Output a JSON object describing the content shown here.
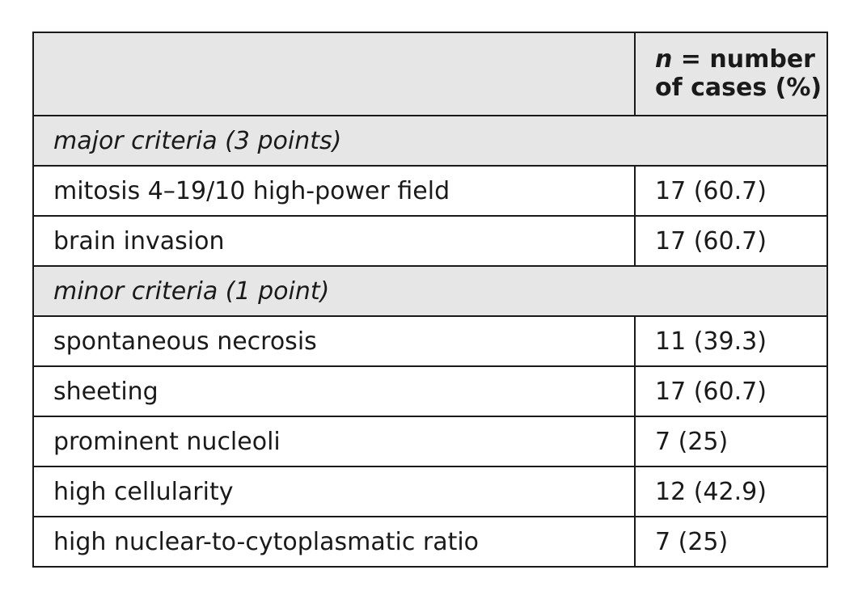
{
  "table": {
    "header": {
      "first_col": "",
      "count_col_line1_var": "n",
      "count_col_line1_rest": " = number",
      "count_col_line2": "of cases (%)"
    },
    "major": {
      "label": "major criteria (3 points)",
      "rows": [
        {
          "criterion": "mitosis 4–19/10 high-power field",
          "count": "17 (60.7)"
        },
        {
          "criterion": "brain invasion",
          "count": "17 (60.7)"
        }
      ]
    },
    "minor": {
      "label": "minor criteria (1 point)",
      "rows": [
        {
          "criterion": "spontaneous necrosis",
          "count": "11 (39.3)"
        },
        {
          "criterion": "sheeting",
          "count": "17 (60.7)"
        },
        {
          "criterion": "prominent nucleoli",
          "count": "7 (25)"
        },
        {
          "criterion": "high cellularity",
          "count": "12 (42.9)"
        },
        {
          "criterion": "high nuclear-to-cytoplasmatic ratio",
          "count": "7 (25)"
        }
      ]
    }
  }
}
